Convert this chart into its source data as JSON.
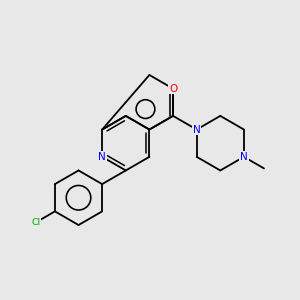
{
  "background_color": "#e8e8e8",
  "figsize": [
    3.0,
    3.0
  ],
  "dpi": 100,
  "colors": {
    "C": "#000000",
    "N": "#0000ff",
    "O": "#ff0000",
    "Cl": "#00aa00",
    "bond": "#000000"
  },
  "font_size": 7.5,
  "bond_lw": 1.3
}
